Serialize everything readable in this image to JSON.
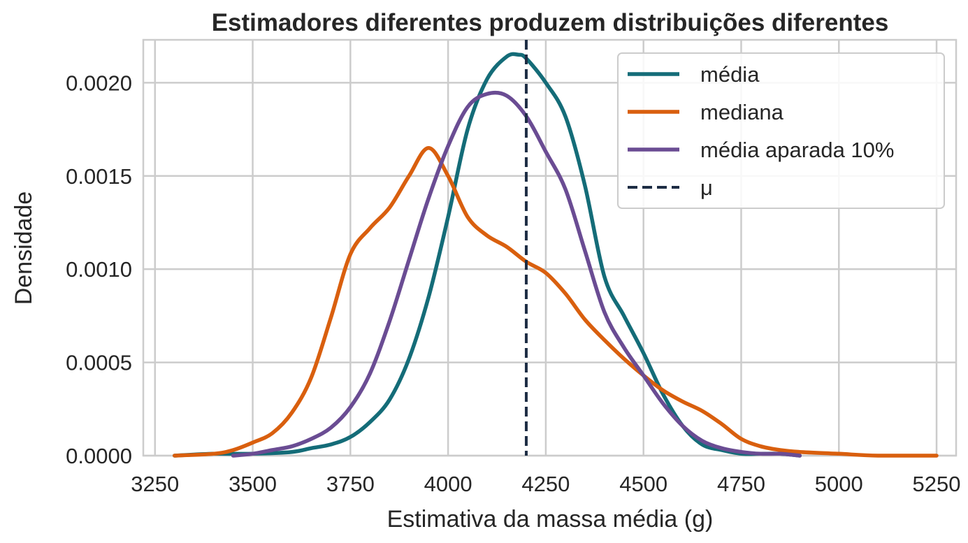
{
  "chart_data": {
    "type": "line",
    "title": "Estimadores diferentes produzem distribuições diferentes",
    "xlabel": "Estimativa da massa média (g)",
    "ylabel": "Densidade",
    "xlim": [
      3220,
      5300
    ],
    "ylim": [
      0,
      0.00223
    ],
    "xticks": [
      "3250",
      "3500",
      "3750",
      "4000",
      "4250",
      "4500",
      "4750",
      "5000",
      "5250"
    ],
    "xtick_values": [
      3250,
      3500,
      3750,
      4000,
      4250,
      4500,
      4750,
      5000,
      5250
    ],
    "yticks": [
      "0.0000",
      "0.0005",
      "0.0010",
      "0.0015",
      "0.0020"
    ],
    "ytick_values": [
      0,
      0.0005,
      0.001,
      0.0015,
      0.002
    ],
    "grid": true,
    "legend_position": "top-right",
    "series": [
      {
        "name": "média",
        "color": "#146c78",
        "x": [
          3300,
          3400,
          3500,
          3600,
          3650,
          3700,
          3750,
          3800,
          3850,
          3900,
          3950,
          4000,
          4050,
          4100,
          4150,
          4180,
          4200,
          4250,
          4300,
          4350,
          4400,
          4450,
          4500,
          4550,
          4600,
          4650,
          4700,
          4750,
          4800,
          4850,
          4900
        ],
        "y": [
          0,
          1e-05,
          1e-05,
          2e-05,
          4e-05,
          6e-05,
          0.0001,
          0.00018,
          0.0003,
          0.00052,
          0.00085,
          0.00128,
          0.00175,
          0.00202,
          0.00214,
          0.00215,
          0.00213,
          0.002,
          0.00182,
          0.00145,
          0.00096,
          0.00075,
          0.00055,
          0.00033,
          0.00016,
          6e-05,
          3e-05,
          1e-05,
          1e-05,
          1e-05,
          0
        ],
        "linestyle": "solid"
      },
      {
        "name": "mediana",
        "color": "#d95f0e",
        "x": [
          3300,
          3400,
          3450,
          3500,
          3550,
          3600,
          3650,
          3700,
          3750,
          3800,
          3850,
          3900,
          3950,
          4000,
          4050,
          4100,
          4150,
          4200,
          4250,
          4300,
          4350,
          4400,
          4450,
          4500,
          4550,
          4600,
          4650,
          4700,
          4750,
          4800,
          4850,
          4900,
          5000,
          5100,
          5250
        ],
        "y": [
          0,
          1e-05,
          3e-05,
          7e-05,
          0.00012,
          0.00023,
          0.00042,
          0.00074,
          0.00108,
          0.00122,
          0.00133,
          0.0015,
          0.00165,
          0.0015,
          0.00128,
          0.00118,
          0.00112,
          0.00104,
          0.00098,
          0.00087,
          0.00073,
          0.00062,
          0.00052,
          0.00043,
          0.00035,
          0.00029,
          0.00024,
          0.00017,
          9e-05,
          5e-05,
          3e-05,
          2e-05,
          1e-05,
          0,
          0
        ],
        "linestyle": "solid"
      },
      {
        "name": "média aparada 10%",
        "color": "#6a4c93",
        "x": [
          3450,
          3500,
          3550,
          3600,
          3650,
          3700,
          3750,
          3800,
          3850,
          3900,
          3950,
          4000,
          4050,
          4100,
          4150,
          4200,
          4250,
          4300,
          4350,
          4400,
          4450,
          4500,
          4550,
          4600,
          4650,
          4700,
          4750,
          4800,
          4850,
          4900
        ],
        "y": [
          0,
          1e-05,
          3e-05,
          5e-05,
          9e-05,
          0.00015,
          0.00026,
          0.00044,
          0.00072,
          0.00105,
          0.00138,
          0.00166,
          0.00187,
          0.00194,
          0.00193,
          0.00182,
          0.00163,
          0.00143,
          0.0011,
          0.00077,
          0.00058,
          0.00043,
          0.00028,
          0.00016,
          8e-05,
          4e-05,
          2e-05,
          1e-05,
          1e-05,
          0
        ],
        "linestyle": "solid"
      }
    ],
    "reference_line": {
      "name": "μ",
      "label": "μ",
      "x": 4200,
      "color": "#1d2d44",
      "linestyle": "dashed"
    }
  }
}
